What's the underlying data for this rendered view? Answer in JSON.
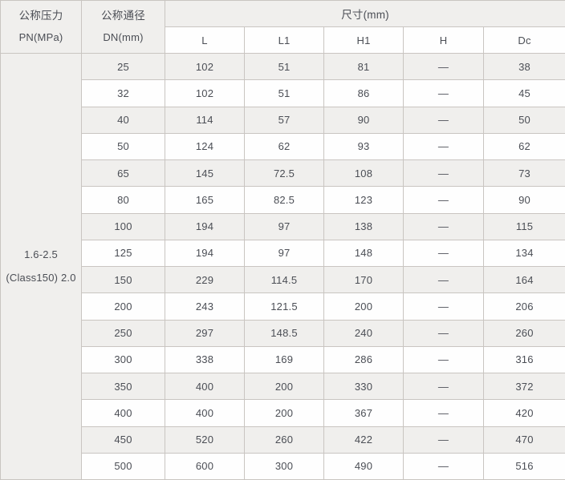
{
  "colors": {
    "border": "#c9c5c1",
    "row_alt_bg": "#f0efed",
    "row_bg": "#fefefe",
    "text": "#4b4e55"
  },
  "table": {
    "header": {
      "pressure_cn": "公称压力",
      "pressure_en": "PN(MPa)",
      "dn_cn": "公称通径",
      "dn_en": "DN(mm)",
      "size_group": "尺寸(mm)",
      "sub_columns": [
        "L",
        "L1",
        "H1",
        "H",
        "Dc"
      ]
    },
    "pressure_cell": {
      "line1": "1.6-2.5",
      "line2": "(Class150) 2.0"
    },
    "rows": [
      {
        "dn": "25",
        "L": "102",
        "L1": "51",
        "H1": "81",
        "H": "—",
        "Dc": "38"
      },
      {
        "dn": "32",
        "L": "102",
        "L1": "51",
        "H1": "86",
        "H": "—",
        "Dc": "45"
      },
      {
        "dn": "40",
        "L": "114",
        "L1": "57",
        "H1": "90",
        "H": "—",
        "Dc": "50"
      },
      {
        "dn": "50",
        "L": "124",
        "L1": "62",
        "H1": "93",
        "H": "—",
        "Dc": "62"
      },
      {
        "dn": "65",
        "L": "145",
        "L1": "72.5",
        "H1": "108",
        "H": "—",
        "Dc": "73"
      },
      {
        "dn": "80",
        "L": "165",
        "L1": "82.5",
        "H1": "123",
        "H": "—",
        "Dc": "90"
      },
      {
        "dn": "100",
        "L": "194",
        "L1": "97",
        "H1": "138",
        "H": "—",
        "Dc": "115"
      },
      {
        "dn": "125",
        "L": "194",
        "L1": "97",
        "H1": "148",
        "H": "—",
        "Dc": "134"
      },
      {
        "dn": "150",
        "L": "229",
        "L1": "114.5",
        "H1": "170",
        "H": "—",
        "Dc": "164"
      },
      {
        "dn": "200",
        "L": "243",
        "L1": "121.5",
        "H1": "200",
        "H": "—",
        "Dc": "206"
      },
      {
        "dn": "250",
        "L": "297",
        "L1": "148.5",
        "H1": "240",
        "H": "—",
        "Dc": "260"
      },
      {
        "dn": "300",
        "L": "338",
        "L1": "169",
        "H1": "286",
        "H": "—",
        "Dc": "316"
      },
      {
        "dn": "350",
        "L": "400",
        "L1": "200",
        "H1": "330",
        "H": "—",
        "Dc": "372"
      },
      {
        "dn": "400",
        "L": "400",
        "L1": "200",
        "H1": "367",
        "H": "—",
        "Dc": "420"
      },
      {
        "dn": "450",
        "L": "520",
        "L1": "260",
        "H1": "422",
        "H": "—",
        "Dc": "470"
      },
      {
        "dn": "500",
        "L": "600",
        "L1": "300",
        "H1": "490",
        "H": "—",
        "Dc": "516"
      }
    ]
  }
}
